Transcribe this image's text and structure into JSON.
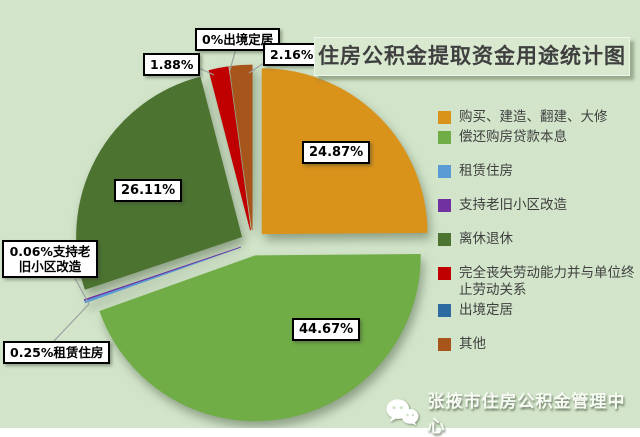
{
  "page": {
    "background": "#D2E5CA"
  },
  "title": {
    "text": "住房公积金提取资金用途统计图"
  },
  "chart_data": {
    "type": "pie",
    "title": "住房公积金提取资金用途统计图",
    "unit": "percent",
    "clockwise": true,
    "start_angle": "12-oclock",
    "legend_position": "right",
    "exploded": true,
    "series": [
      {
        "label": "购买、建造、翻建、大修",
        "value": 24.87,
        "color": "#D9921A",
        "data_label": "24.87%"
      },
      {
        "label": "偿还购房贷款本息",
        "value": 44.67,
        "color": "#70AD47",
        "data_label": "44.67%"
      },
      {
        "label": "租赁住房",
        "value": 0.25,
        "color": "#5B9BD5",
        "data_label": "0.25%租赁住房"
      },
      {
        "label": "支持老旧小区改造",
        "value": 0.06,
        "color": "#7030A0",
        "data_label": "0.06%支持老旧小区改造"
      },
      {
        "label": "离休退休",
        "value": 26.11,
        "color": "#4D7331",
        "data_label": "26.11%"
      },
      {
        "label": "完全丧失劳动能力并与单位终止劳动关系",
        "value": 1.88,
        "color": "#C00000",
        "data_label": "1.88%"
      },
      {
        "label": "出境定居",
        "value": 0,
        "color": "#2D6A9F",
        "data_label": "0%出境定居"
      },
      {
        "label": "其他",
        "value": 2.16,
        "color": "#A8551B",
        "data_label": "2.16%"
      }
    ]
  },
  "callouts": {
    "purchase": "24.87%",
    "repay": "44.67%",
    "retire": "26.11%",
    "disability": "1.88%",
    "abroad": "0%出境定居",
    "other": "2.16%",
    "renovation": "0.06%支持老旧小区改造",
    "rent": "0.25%租赁住房"
  },
  "watermark": {
    "icon": "wechat-icon",
    "text": "张掖市住房公积金管理中心"
  }
}
